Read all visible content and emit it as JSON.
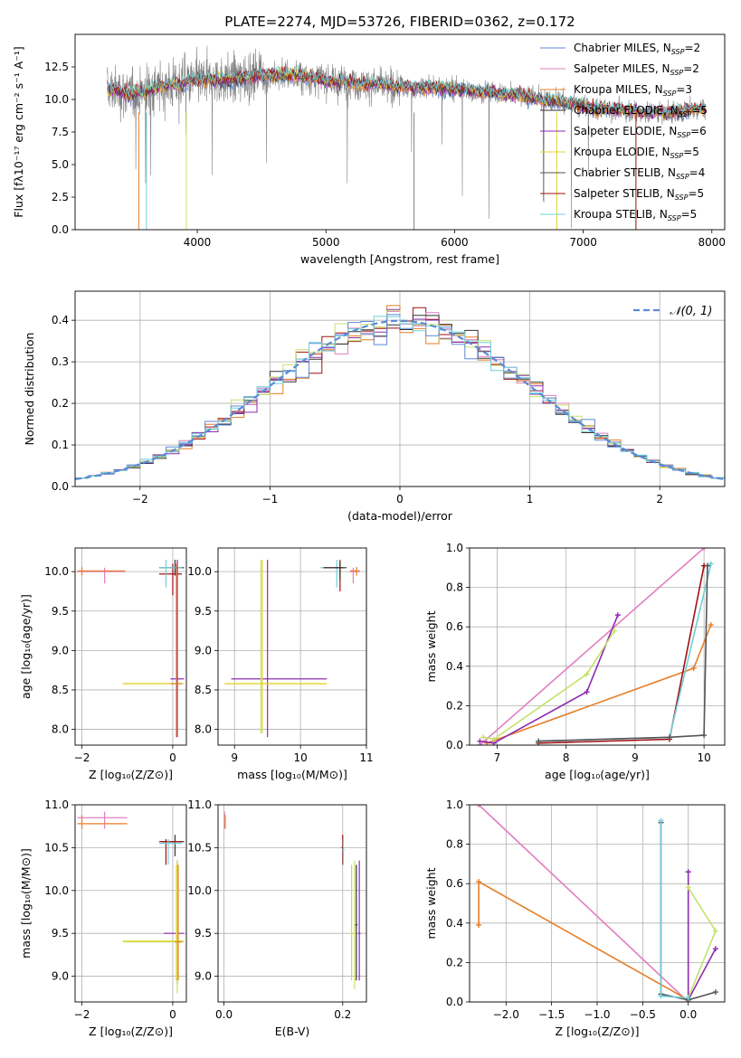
{
  "colors": {
    "chabrier_miles": "#5b8ad6",
    "salpeter_miles": "#e07fc0",
    "kroupa_miles": "#e57e27",
    "chabrier_elodie": "#333333",
    "salpeter_elodie": "#8e2bb0",
    "kroupa_elodie": "#e6d52b",
    "chabrier_stelib": "#555555",
    "salpeter_stelib": "#a01010",
    "kroupa_stelib": "#6fd0d8",
    "lime": "#c3e26a",
    "gauss": "#5b8ad6",
    "data": "#808080"
  },
  "chart_data": [
    {
      "id": "spectrum",
      "type": "line",
      "title": "PLATE=2274, MJD=53726, FIBERID=0362, z=0.172",
      "xlabel": "wavelength [Angstrom, rest frame]",
      "ylabel": "Flux [fλ10⁻¹⁷ erg cm⁻² s⁻¹ A⁻¹]",
      "xlim": [
        3050,
        8100
      ],
      "ylim": [
        0,
        15
      ],
      "xticks": [
        4000,
        5000,
        6000,
        7000,
        8000
      ],
      "yticks": [
        0.0,
        2.5,
        5.0,
        7.5,
        10.0,
        12.5
      ],
      "ytick_labels": [
        "0.0",
        "2.5",
        "5.0",
        "7.5",
        "10.0",
        "12.5"
      ],
      "continuum": [
        [
          3300,
          10.8
        ],
        [
          3500,
          10.4
        ],
        [
          3700,
          10.9
        ],
        [
          3900,
          11.3
        ],
        [
          4100,
          11.5
        ],
        [
          4300,
          11.6
        ],
        [
          4500,
          11.9
        ],
        [
          4700,
          11.9
        ],
        [
          4900,
          11.6
        ],
        [
          5100,
          11.4
        ],
        [
          5300,
          11.2
        ],
        [
          5500,
          11.0
        ],
        [
          5700,
          10.9
        ],
        [
          5900,
          10.9
        ],
        [
          6100,
          10.7
        ],
        [
          6300,
          10.5
        ],
        [
          6500,
          10.3
        ],
        [
          6700,
          10.0
        ],
        [
          6900,
          9.7
        ],
        [
          7100,
          9.3
        ],
        [
          7300,
          9.2
        ],
        [
          7500,
          9.0
        ],
        [
          7700,
          9.0
        ],
        [
          7900,
          9.3
        ]
      ],
      "legend": [
        {
          "label": "Chabrier MILES, N",
          "sub": "SSP",
          "suffix": "=2",
          "color": "#5b8ad6"
        },
        {
          "label": "Salpeter MILES, N",
          "sub": "SSP",
          "suffix": "=2",
          "color": "#e07fc0"
        },
        {
          "label": "Kroupa MILES, N",
          "sub": "SSP",
          "suffix": "=3",
          "color": "#e57e27"
        },
        {
          "label": "Chabrier ELODIE, N",
          "sub": "SSP",
          "suffix": "=5",
          "color": "#333333"
        },
        {
          "label": "Salpeter ELODIE, N",
          "sub": "SSP",
          "suffix": "=6",
          "color": "#8e2bb0"
        },
        {
          "label": "Kroupa ELODIE, N",
          "sub": "SSP",
          "suffix": "=5",
          "color": "#e6d52b"
        },
        {
          "label": "Chabrier STELIB, N",
          "sub": "SSP",
          "suffix": "=4",
          "color": "#555555"
        },
        {
          "label": "Salpeter STELIB, N",
          "sub": "SSP",
          "suffix": "=5",
          "color": "#a01010"
        },
        {
          "label": "Kroupa STELIB, N",
          "sub": "SSP",
          "suffix": "=5",
          "color": "#6fd0d8"
        }
      ]
    },
    {
      "id": "residuals",
      "type": "histogram",
      "xlabel": "(data-model)/error",
      "ylabel": "Normed distribution",
      "xlim": [
        -2.5,
        2.5
      ],
      "ylim": [
        0,
        0.47
      ],
      "xticks": [
        -2,
        -1,
        0,
        1,
        2
      ],
      "xtick_labels": [
        "−2",
        "−1",
        "0",
        "1",
        "2"
      ],
      "yticks": [
        0.0,
        0.1,
        0.2,
        0.3,
        0.4
      ],
      "ytick_labels": [
        "0.0",
        "0.1",
        "0.2",
        "0.3",
        "0.4"
      ],
      "legend": "𝒩(0, 1)",
      "bin_width": 0.1
    },
    {
      "id": "age_vs_Z",
      "type": "errorbar",
      "xlabel": "Z [log₁₀(Z/Z⊙)]",
      "ylabel": "age  [log₁₀(age/yr)]",
      "xlim": [
        -2.15,
        0.3
      ],
      "ylim": [
        7.8,
        10.3
      ],
      "xticks": [
        -2,
        0
      ],
      "xtick_labels": [
        "−2",
        "0"
      ],
      "yticks": [
        8.0,
        8.5,
        9.0,
        9.5,
        10.0
      ],
      "ytick_labels": [
        "8.0",
        "8.5",
        "9.0",
        "9.5",
        "10.0"
      ],
      "points": [
        {
          "x": -1.5,
          "y": 10.0,
          "x_lo": -2.1,
          "x_hi": -1.05,
          "y_lo": 9.85,
          "y_hi": 10.05,
          "c": "#e07fc0"
        },
        {
          "x": -2.0,
          "y": 10.01,
          "x_lo": -2.1,
          "x_hi": -1.05,
          "y_lo": 9.95,
          "y_hi": 10.06,
          "c": "#e57e27"
        },
        {
          "x": 0.05,
          "y": 10.05,
          "x_lo": -0.3,
          "x_hi": 0.25,
          "y_lo": 9.95,
          "y_hi": 10.15,
          "c": "#333333"
        },
        {
          "x": 0.0,
          "y": 9.97,
          "x_lo": -0.3,
          "x_hi": 0.2,
          "y_lo": 9.7,
          "y_hi": 10.1,
          "c": "#a01010"
        },
        {
          "x": -0.15,
          "y": 10.05,
          "x_lo": -0.3,
          "x_hi": 0.2,
          "y_lo": 9.8,
          "y_hi": 10.15,
          "c": "#6fd0d8"
        },
        {
          "x": 0.1,
          "y": 8.58,
          "x_lo": -1.1,
          "x_hi": 0.25,
          "y_lo": 7.9,
          "y_hi": 10.15,
          "c": "#c3e26a"
        },
        {
          "x": 0.1,
          "y": 8.58,
          "x_lo": -1.1,
          "x_hi": 0.25,
          "y_lo": 7.95,
          "y_hi": 10.15,
          "c": "#e6d52b"
        },
        {
          "x": 0.1,
          "y": 8.64,
          "x_lo": -0.05,
          "x_hi": 0.25,
          "y_lo": 7.9,
          "y_hi": 10.15,
          "c": "#8e2bb0"
        },
        {
          "x": 0.08,
          "y": 8.58,
          "x_lo": -0.05,
          "x_hi": 0.2,
          "y_lo": 7.9,
          "y_hi": 10.1,
          "c": "#e57e27"
        }
      ]
    },
    {
      "id": "age_vs_mass",
      "type": "errorbar",
      "xlabel": "mass [log₁₀(M/M⊙)]",
      "ylabel": "",
      "xlim": [
        8.75,
        11.0
      ],
      "ylim": [
        7.8,
        10.3
      ],
      "xticks": [
        9,
        10,
        11
      ],
      "xtick_labels": [
        "9",
        "10",
        "11"
      ],
      "yticks": [
        8.0,
        8.5,
        9.0,
        9.5,
        10.0
      ],
      "ytick_labels": [
        "8.0",
        "8.5",
        "9.0",
        "9.5",
        "10.0"
      ],
      "points": [
        {
          "x": 9.5,
          "y": 8.64,
          "x_lo": 8.95,
          "x_hi": 10.4,
          "y_lo": 7.9,
          "y_hi": 10.15,
          "c": "#8e2bb0"
        },
        {
          "x": 9.4,
          "y": 8.58,
          "x_lo": 8.85,
          "x_hi": 10.4,
          "y_lo": 7.95,
          "y_hi": 10.15,
          "c": "#c3e26a"
        },
        {
          "x": 9.42,
          "y": 8.58,
          "x_lo": 8.85,
          "x_hi": 10.4,
          "y_lo": 7.95,
          "y_hi": 10.15,
          "c": "#e6d52b"
        },
        {
          "x": 10.55,
          "y": 10.05,
          "x_lo": 10.3,
          "x_hi": 10.65,
          "y_lo": 9.8,
          "y_hi": 10.15,
          "c": "#6fd0d8"
        },
        {
          "x": 10.6,
          "y": 10.05,
          "x_lo": 10.35,
          "x_hi": 10.65,
          "y_lo": 9.75,
          "y_hi": 10.15,
          "c": "#a01010"
        },
        {
          "x": 10.6,
          "y": 10.05,
          "x_lo": 10.35,
          "x_hi": 10.7,
          "y_lo": 9.9,
          "y_hi": 10.12,
          "c": "#333333"
        },
        {
          "x": 10.8,
          "y": 10.0,
          "x_lo": 10.75,
          "x_hi": 10.9,
          "y_lo": 9.85,
          "y_hi": 10.05,
          "c": "#e07fc0"
        },
        {
          "x": 10.85,
          "y": 10.01,
          "x_lo": 10.75,
          "x_hi": 10.9,
          "y_lo": 9.95,
          "y_hi": 10.06,
          "c": "#e57e27"
        }
      ]
    },
    {
      "id": "massweight_vs_age",
      "type": "line",
      "xlabel": "age  [log₁₀(age/yr)]",
      "ylabel": "mass weight",
      "xlim": [
        6.6,
        10.3
      ],
      "ylim": [
        0,
        1.0
      ],
      "xticks": [
        7,
        8,
        9,
        10
      ],
      "xtick_labels": [
        "7",
        "8",
        "9",
        "10"
      ],
      "yticks": [
        0.0,
        0.2,
        0.4,
        0.6,
        0.8,
        1.0
      ],
      "ytick_labels": [
        "0.0",
        "0.2",
        "0.4",
        "0.6",
        "0.8",
        "1.0"
      ],
      "series": [
        {
          "c": "#e07fc0",
          "pts": [
            [
              6.75,
              0.0
            ],
            [
              10.0,
              1.0
            ]
          ]
        },
        {
          "c": "#e57e27",
          "pts": [
            [
              6.85,
              0.01
            ],
            [
              9.85,
              0.39
            ],
            [
              10.1,
              0.61
            ]
          ]
        },
        {
          "c": "#8e2bb0",
          "pts": [
            [
              6.75,
              0.02
            ],
            [
              6.95,
              0.01
            ],
            [
              8.3,
              0.27
            ],
            [
              8.75,
              0.66
            ]
          ]
        },
        {
          "c": "#c3e26a",
          "pts": [
            [
              6.8,
              0.04
            ],
            [
              6.95,
              0.03
            ],
            [
              8.3,
              0.36
            ],
            [
              8.7,
              0.58
            ]
          ]
        },
        {
          "c": "#a01010",
          "pts": [
            [
              7.6,
              0.01
            ],
            [
              9.5,
              0.03
            ],
            [
              10.0,
              0.91
            ]
          ]
        },
        {
          "c": "#6fd0d8",
          "pts": [
            [
              7.6,
              0.02
            ],
            [
              9.5,
              0.04
            ],
            [
              10.1,
              0.92
            ]
          ]
        },
        {
          "c": "#555555",
          "pts": [
            [
              7.6,
              0.02
            ],
            [
              9.5,
              0.04
            ],
            [
              10.0,
              0.05
            ],
            [
              10.05,
              0.91
            ]
          ]
        }
      ]
    },
    {
      "id": "mass_vs_Z",
      "type": "errorbar",
      "xlabel": "Z [log₁₀(Z/Z⊙)]",
      "ylabel": "mass [log₁₀(M/M⊙)]",
      "xlim": [
        -2.15,
        0.3
      ],
      "ylim": [
        8.7,
        11.0
      ],
      "xticks": [
        -2,
        0
      ],
      "xtick_labels": [
        "−2",
        "0"
      ],
      "yticks": [
        9.0,
        9.5,
        10.0,
        10.5,
        11.0
      ],
      "ytick_labels": [
        "9.0",
        "9.5",
        "10.0",
        "10.5",
        "11.0"
      ],
      "points": [
        {
          "x": -1.5,
          "y": 10.85,
          "x_lo": -2.1,
          "x_hi": -1.0,
          "y_lo": 10.72,
          "y_hi": 10.92,
          "c": "#e07fc0"
        },
        {
          "x": -2.0,
          "y": 10.78,
          "x_lo": -2.1,
          "x_hi": -1.0,
          "y_lo": 10.72,
          "y_hi": 10.88,
          "c": "#e57e27"
        },
        {
          "x": 0.05,
          "y": 10.57,
          "x_lo": -0.25,
          "x_hi": 0.25,
          "y_lo": 10.4,
          "y_hi": 10.65,
          "c": "#333333"
        },
        {
          "x": -0.15,
          "y": 10.57,
          "x_lo": -0.3,
          "x_hi": 0.2,
          "y_lo": 10.3,
          "y_hi": 10.6,
          "c": "#a01010"
        },
        {
          "x": -0.1,
          "y": 10.55,
          "x_lo": -0.3,
          "x_hi": 0.2,
          "y_lo": 10.3,
          "y_hi": 10.6,
          "c": "#6fd0d8"
        },
        {
          "x": 0.1,
          "y": 9.5,
          "x_lo": -0.2,
          "x_hi": 0.25,
          "y_lo": 8.9,
          "y_hi": 10.35,
          "c": "#8e2bb0"
        },
        {
          "x": 0.1,
          "y": 9.4,
          "x_lo": -1.1,
          "x_hi": 0.25,
          "y_lo": 8.8,
          "y_hi": 10.35,
          "c": "#c3e26a"
        },
        {
          "x": 0.08,
          "y": 9.41,
          "x_lo": -1.1,
          "x_hi": 0.25,
          "y_lo": 8.95,
          "y_hi": 10.3,
          "c": "#e6d52b"
        },
        {
          "x": 0.12,
          "y": 9.4,
          "x_lo": 0.05,
          "x_hi": 0.2,
          "y_lo": 8.95,
          "y_hi": 10.3,
          "c": "#e57e27"
        }
      ]
    },
    {
      "id": "mass_vs_ebv",
      "type": "errorbar",
      "xlabel": "E(B-V)",
      "ylabel": "",
      "xlim": [
        -0.01,
        0.24
      ],
      "ylim": [
        8.7,
        11.0
      ],
      "xticks": [
        0.0,
        0.2
      ],
      "xtick_labels": [
        "0.0",
        "0.2"
      ],
      "yticks": [
        9.0,
        9.5,
        10.0,
        10.5,
        11.0
      ],
      "ytick_labels": [
        "9.0",
        "9.5",
        "10.0",
        "10.5",
        "11.0"
      ],
      "points": [
        {
          "x": 0.001,
          "y": 10.85,
          "x_lo": 0.0,
          "x_hi": 0.002,
          "y_lo": 10.72,
          "y_hi": 10.92,
          "c": "#e07fc0"
        },
        {
          "x": 0.002,
          "y": 10.78,
          "x_lo": 0.001,
          "x_hi": 0.003,
          "y_lo": 10.72,
          "y_hi": 10.88,
          "c": "#e57e27"
        },
        {
          "x": 0.2,
          "y": 10.5,
          "x_lo": 0.198,
          "x_hi": 0.202,
          "y_lo": 10.3,
          "y_hi": 10.65,
          "c": "#a01010"
        },
        {
          "x": 0.201,
          "y": 10.47,
          "x_lo": 0.199,
          "x_hi": 0.203,
          "y_lo": 10.3,
          "y_hi": 10.6,
          "c": "#6fd0d8"
        },
        {
          "x": 0.22,
          "y": 9.5,
          "x_lo": 0.218,
          "x_hi": 0.222,
          "y_lo": 8.85,
          "y_hi": 10.35,
          "c": "#c3e26a"
        },
        {
          "x": 0.215,
          "y": 9.5,
          "x_lo": 0.213,
          "x_hi": 0.217,
          "y_lo": 8.95,
          "y_hi": 10.3,
          "c": "#e6d52b"
        },
        {
          "x": 0.228,
          "y": 9.5,
          "x_lo": 0.226,
          "x_hi": 0.23,
          "y_lo": 8.95,
          "y_hi": 10.35,
          "c": "#8e2bb0"
        },
        {
          "x": 0.223,
          "y": 9.6,
          "x_lo": 0.221,
          "x_hi": 0.225,
          "y_lo": 8.95,
          "y_hi": 10.3,
          "c": "#333333"
        }
      ]
    },
    {
      "id": "massweight_vs_Z",
      "type": "line",
      "xlabel": "Z [log₁₀(Z/Z⊙)]",
      "ylabel": "mass weight",
      "xlim": [
        -2.4,
        0.4
      ],
      "ylim": [
        0,
        1.0
      ],
      "xticks": [
        -2.0,
        -1.5,
        -1.0,
        -0.5,
        0.0
      ],
      "xtick_labels": [
        "−2.0",
        "−1.5",
        "−1.0",
        "−0.5",
        "0.0"
      ],
      "yticks": [
        0.0,
        0.2,
        0.4,
        0.6,
        0.8,
        1.0
      ],
      "ytick_labels": [
        "0.0",
        "0.2",
        "0.4",
        "0.6",
        "0.8",
        "1.0"
      ],
      "series": [
        {
          "c": "#e07fc0",
          "pts": [
            [
              -2.3,
              1.0
            ],
            [
              0.0,
              0.0
            ]
          ]
        },
        {
          "c": "#e57e27",
          "pts": [
            [
              -2.3,
              0.39
            ],
            [
              -2.3,
              0.61
            ],
            [
              0.0,
              0.01
            ]
          ]
        },
        {
          "c": "#8e2bb0",
          "pts": [
            [
              0.0,
              0.66
            ],
            [
              0.0,
              0.01
            ],
            [
              0.3,
              0.27
            ]
          ]
        },
        {
          "c": "#c3e26a",
          "pts": [
            [
              0.0,
              0.58
            ],
            [
              0.3,
              0.36
            ],
            [
              0.0,
              0.02
            ]
          ]
        },
        {
          "c": "#555555",
          "pts": [
            [
              -0.3,
              0.91
            ],
            [
              -0.3,
              0.04
            ],
            [
              0.0,
              0.01
            ],
            [
              0.3,
              0.05
            ]
          ]
        },
        {
          "c": "#6fd0d8",
          "pts": [
            [
              -0.3,
              0.92
            ],
            [
              -0.3,
              0.03
            ],
            [
              0.0,
              0.02
            ]
          ]
        }
      ]
    }
  ]
}
